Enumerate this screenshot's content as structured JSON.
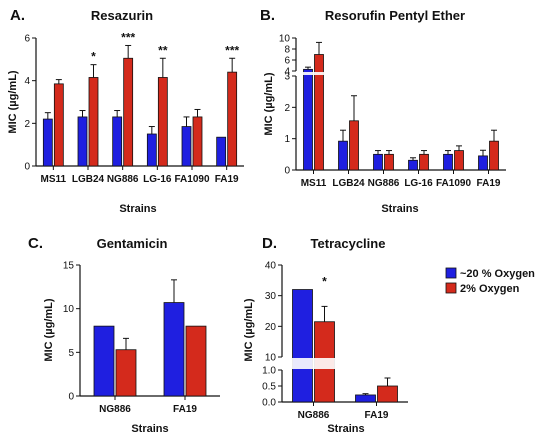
{
  "colors": {
    "oxygen20": "#1f1fe0",
    "oxygen2": "#d42a1c",
    "axis": "#111111"
  },
  "legend": [
    "~20 % Oxygen",
    "2% Oxygen"
  ],
  "chart_data": [
    {
      "panel": "A.",
      "type": "bar",
      "title": "Resazurin",
      "xlabel": "Strains",
      "ylabel": "MIC (µg/mL)",
      "ylim": [
        0,
        6
      ],
      "yticks": [
        0,
        2,
        4,
        6
      ],
      "categories": [
        "MS11",
        "LGB24",
        "NG886",
        "LG-16",
        "FA1090",
        "FA19"
      ],
      "series": [
        {
          "name": "~20 % Oxygen",
          "values": [
            2.2,
            2.3,
            2.3,
            1.5,
            1.85,
            1.35
          ],
          "errors": [
            0.3,
            0.3,
            0.3,
            0.35,
            0.45,
            0
          ]
        },
        {
          "name": "2% Oxygen",
          "values": [
            3.85,
            4.15,
            5.05,
            4.15,
            2.3,
            4.4
          ],
          "errors": [
            0.2,
            0.6,
            0.6,
            0.9,
            0.35,
            0.65
          ]
        }
      ],
      "significance": [
        "",
        "*",
        "***",
        "**",
        "",
        "***"
      ]
    },
    {
      "panel": "B.",
      "type": "bar",
      "title": "Resorufin Pentyl Ether",
      "xlabel": "Strains",
      "ylabel": "MIC (µg/mL)",
      "ylim": [
        0,
        10
      ],
      "axis_break": {
        "lower": [
          0,
          3
        ],
        "upper": [
          4,
          10
        ]
      },
      "yticks_lower": [
        0,
        1,
        2,
        3
      ],
      "yticks_upper": [
        4,
        6,
        8,
        10
      ],
      "categories": [
        "MS11",
        "LGB24",
        "NG886",
        "LG-16",
        "FA1090",
        "FA19"
      ],
      "series": [
        {
          "name": "~20 % Oxygen",
          "values": [
            4.3,
            0.92,
            0.5,
            0.31,
            0.5,
            0.45
          ],
          "errors": [
            0.4,
            0.35,
            0.12,
            0.08,
            0.12,
            0.18
          ]
        },
        {
          "name": "2% Oxygen",
          "values": [
            7.0,
            1.57,
            0.5,
            0.5,
            0.62,
            0.92
          ],
          "errors": [
            2.2,
            0.8,
            0.12,
            0.12,
            0.15,
            0.35
          ]
        }
      ],
      "significance": [
        "",
        "",
        "",
        "",
        "",
        ""
      ]
    },
    {
      "panel": "C.",
      "type": "bar",
      "title": "Gentamicin",
      "xlabel": "Strains",
      "ylabel": "MIC (µg/mL)",
      "ylim": [
        0,
        15
      ],
      "yticks": [
        0,
        5,
        10,
        15
      ],
      "categories": [
        "NG886",
        "FA19"
      ],
      "series": [
        {
          "name": "~20 % Oxygen",
          "values": [
            8.0,
            10.7
          ],
          "errors": [
            0,
            2.6
          ]
        },
        {
          "name": "2% Oxygen",
          "values": [
            5.3,
            8.0
          ],
          "errors": [
            1.3,
            0
          ]
        }
      ],
      "significance": [
        "",
        ""
      ]
    },
    {
      "panel": "D.",
      "type": "bar",
      "title": "Tetracycline",
      "xlabel": "Strains",
      "ylabel": "MIC (µg/mL)",
      "ylim": [
        0,
        40
      ],
      "axis_break": {
        "lower": [
          0,
          1
        ],
        "upper": [
          10,
          40
        ]
      },
      "yticks_lower": [
        0.0,
        0.5,
        1.0
      ],
      "yticks_upper": [
        10,
        20,
        30,
        40
      ],
      "tick_labels_lower": [
        "0.0",
        "0.5",
        "1.0"
      ],
      "categories": [
        "NG886",
        "FA19"
      ],
      "series": [
        {
          "name": "~20 % Oxygen",
          "values": [
            32,
            0.22
          ],
          "errors": [
            0,
            0.04
          ]
        },
        {
          "name": "2% Oxygen",
          "values": [
            21.5,
            0.5
          ],
          "errors": [
            5,
            0.25
          ]
        }
      ],
      "significance": [
        "*",
        ""
      ]
    }
  ]
}
